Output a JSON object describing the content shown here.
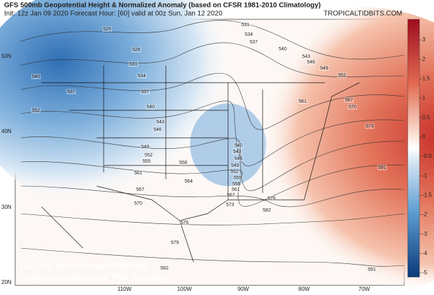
{
  "header": {
    "title": "GFS 500mb Geopotential Height & Normalized Anomaly (based on CFSR 1981-2010 Climatology)",
    "subtitle": "Init: 12z Jan 09 2020   Forecast Hour: [60]   valid at 00z Sun, Jan 12 2020",
    "watermark": "TROPICALTIDBITS.COM"
  },
  "latitude_labels": [
    "50N",
    "40N",
    "30N",
    "20N"
  ],
  "longitude_labels": [
    "110W",
    "100W",
    "90W",
    "80W",
    "70W"
  ],
  "colorbar": {
    "ticks": [
      "3",
      "2",
      "1.5",
      "1",
      "0.5",
      "0",
      "-0.5",
      "-1",
      "-1.5",
      "-2",
      "-3",
      "-4",
      "-5"
    ]
  },
  "contour_labels": [
    "525",
    "528",
    "531",
    "534",
    "537",
    "540",
    "543",
    "546",
    "549",
    "552",
    "555",
    "558",
    "561",
    "564",
    "567",
    "570",
    "573",
    "576",
    "579",
    "582",
    "531",
    "534",
    "537",
    "540",
    "543",
    "546",
    "549",
    "552",
    "561",
    "567",
    "570",
    "573",
    "591",
    "591",
    "540",
    "543",
    "546",
    "549",
    "552",
    "555",
    "558",
    "561",
    "567",
    "576",
    "582",
    "540",
    "552",
    "537"
  ],
  "caption": [
    "12Z GFS forecast map of 500 mb",
    "height anomalies as of 7PM Saturday"
  ]
}
